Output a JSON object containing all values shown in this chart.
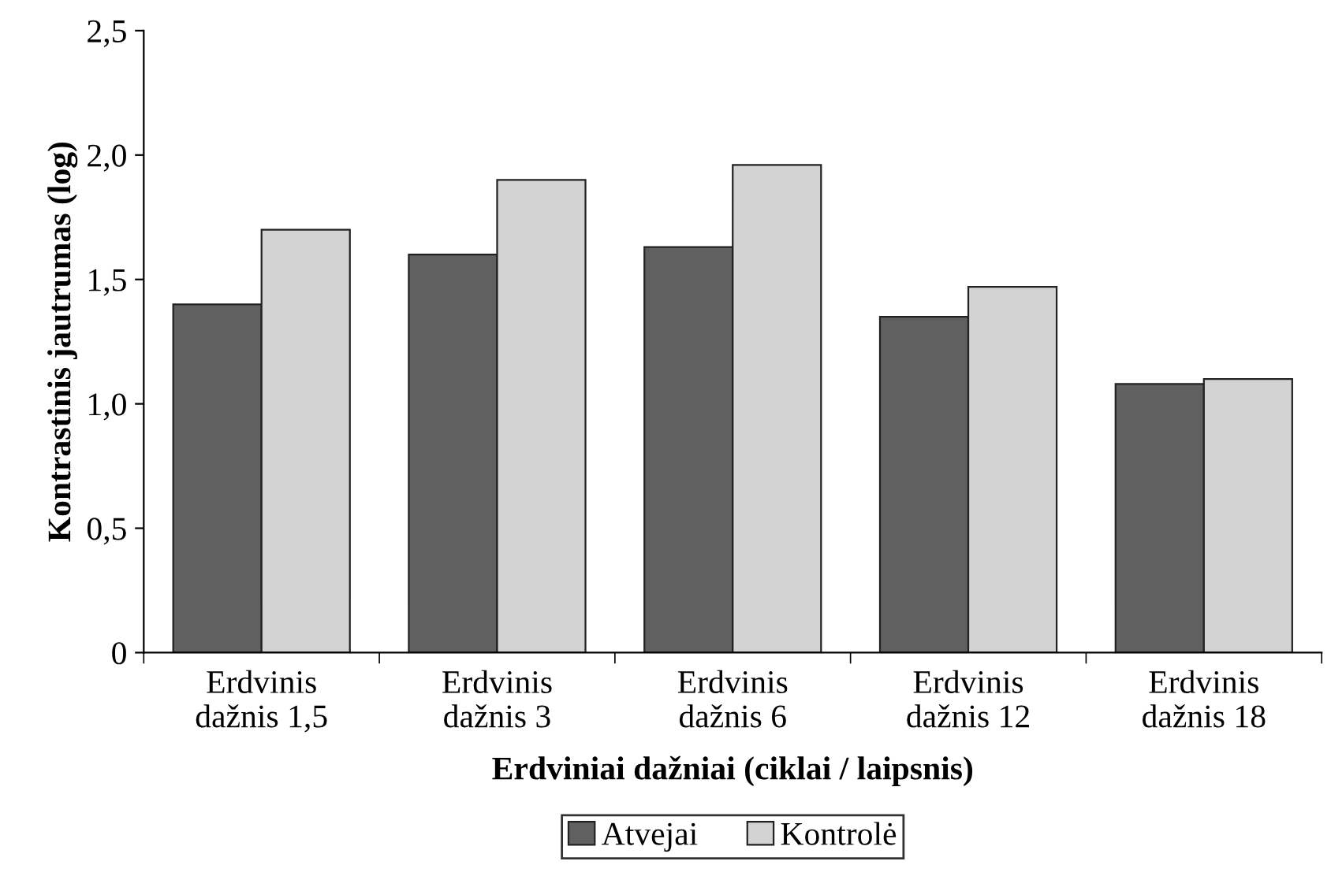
{
  "chart_data": {
    "type": "bar",
    "xlabel": "Erdviniai dažniai (ciklai / laipsnis)",
    "ylabel": "Kontrastinis jautrumas (log)",
    "categories": [
      "Erdvinis\ndažnis 1,5",
      "Erdvinis\ndažnis 3",
      "Erdvinis\ndažnis 6",
      "Erdvinis\ndažnis 12",
      "Erdvinis\ndažnis 18"
    ],
    "series": [
      {
        "name": "Atvejai",
        "color": "#606060",
        "values": [
          1.4,
          1.6,
          1.63,
          1.35,
          1.08
        ]
      },
      {
        "name": "Kontrolė",
        "color": "#d3d3d3",
        "values": [
          1.7,
          1.9,
          1.96,
          1.47,
          1.1
        ]
      }
    ],
    "ylim": [
      0,
      2.5
    ],
    "yticks": [
      0,
      {
        "value": 0.5,
        "label": "0,5"
      },
      {
        "value": 1.0,
        "label": "1,0"
      },
      {
        "value": 1.5,
        "label": "1,5"
      },
      {
        "value": 2.0,
        "label": "2,0"
      },
      {
        "value": 2.5,
        "label": "2,5"
      }
    ],
    "grid": false,
    "legend": "bottom"
  }
}
